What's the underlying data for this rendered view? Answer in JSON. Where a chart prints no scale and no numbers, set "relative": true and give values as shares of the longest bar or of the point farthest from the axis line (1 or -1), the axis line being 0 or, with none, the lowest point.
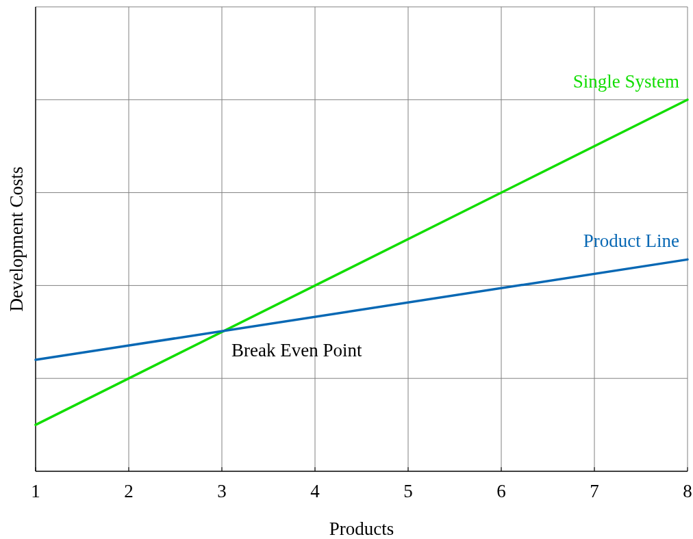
{
  "chart_data": {
    "type": "line",
    "xlabel": "Products",
    "ylabel": "Development Costs",
    "relative": true,
    "x": [
      1,
      8
    ],
    "xlim": [
      1,
      8
    ],
    "xticks": [
      1,
      2,
      3,
      4,
      5,
      6,
      7,
      8
    ],
    "grid": true,
    "series": [
      {
        "name": "Single System",
        "color": "#11dd00",
        "values": [
          0.125,
          1
        ]
      },
      {
        "name": "Product Line",
        "color": "#0868b4",
        "values": [
          0.3,
          0.57
        ]
      }
    ],
    "annotations": [
      {
        "text": "Break Even Point",
        "x": 3,
        "y": 0.375
      }
    ]
  }
}
